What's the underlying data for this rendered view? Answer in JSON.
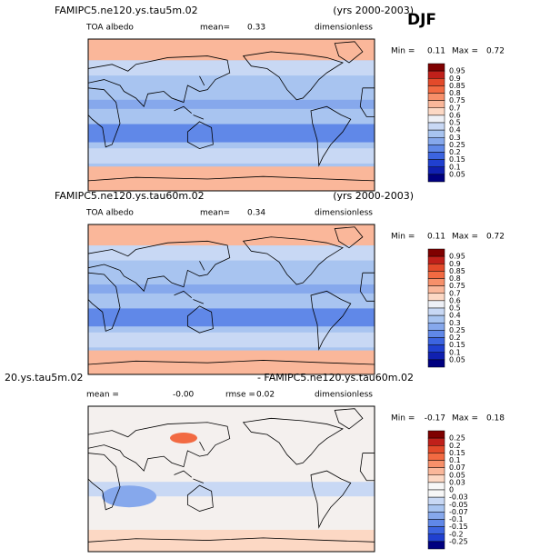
{
  "season": "DJF",
  "panels": [
    {
      "title_left": "FAMIPC5.ne120.ys.tau5m.02",
      "title_right": "(yrs 2000-2003)",
      "subtitle": [
        "TOA albedo",
        "mean=",
        "0.33",
        "dimensionless"
      ],
      "min_label": "Min =",
      "min": "0.11",
      "max_label": "Max =",
      "max": "0.72",
      "colorbar": {
        "labels": [
          "0.95",
          "0.9",
          "0.85",
          "0.8",
          "0.75",
          "0.7",
          "0.6",
          "0.5",
          "0.4",
          "0.3",
          "0.25",
          "0.2",
          "0.15",
          "0.1",
          "0.05"
        ],
        "colors": [
          "#7f0000",
          "#c0201a",
          "#e34a2a",
          "#f26a42",
          "#f7906a",
          "#fab79a",
          "#fcd8c4",
          "#eef0f6",
          "#c8d8f4",
          "#a8c4f0",
          "#86a8ec",
          "#6088e8",
          "#3c64e0",
          "#2040d0",
          "#1020b0",
          "#000080"
        ]
      }
    },
    {
      "title_left": "FAMIPC5.ne120.ys.tau60m.02",
      "title_right": "(yrs 2000-2003)",
      "subtitle": [
        "TOA albedo",
        "mean=",
        "0.34",
        "dimensionless"
      ],
      "min_label": "Min =",
      "min": "0.11",
      "max_label": "Max =",
      "max": "0.72",
      "colorbar": {
        "labels": [
          "0.95",
          "0.9",
          "0.85",
          "0.8",
          "0.75",
          "0.7",
          "0.6",
          "0.5",
          "0.4",
          "0.3",
          "0.25",
          "0.2",
          "0.15",
          "0.1",
          "0.05"
        ],
        "colors": [
          "#7f0000",
          "#c0201a",
          "#e34a2a",
          "#f26a42",
          "#f7906a",
          "#fab79a",
          "#fcd8c4",
          "#eef0f6",
          "#c8d8f4",
          "#a8c4f0",
          "#86a8ec",
          "#6088e8",
          "#3c64e0",
          "#2040d0",
          "#1020b0",
          "#000080"
        ]
      }
    },
    {
      "title_left": "20.ys.tau5m.02",
      "title_right": "- FAMIPC5.ne120.ys.tau60m.02",
      "subtitle": [
        "mean =",
        "-0.00",
        "rmse =",
        "0.02",
        "dimensionless"
      ],
      "min_label": "Min =",
      "min": "-0.17",
      "max_label": "Max =",
      "max": "0.18",
      "colorbar": {
        "labels": [
          "0.25",
          "0.2",
          "0.15",
          "0.1",
          "0.07",
          "0.05",
          "0.03",
          "0",
          "-0.03",
          "-0.05",
          "-0.07",
          "-0.1",
          "-0.15",
          "-0.2",
          "-0.25"
        ],
        "colors": [
          "#7f0000",
          "#c0201a",
          "#e34a2a",
          "#f26a42",
          "#f7906a",
          "#fab79a",
          "#fcd8c4",
          "#f7f7f7",
          "#f7f7f7",
          "#c8d8f4",
          "#a8c4f0",
          "#86a8ec",
          "#6088e8",
          "#3c64e0",
          "#2040d0",
          "#000080"
        ]
      }
    }
  ]
}
